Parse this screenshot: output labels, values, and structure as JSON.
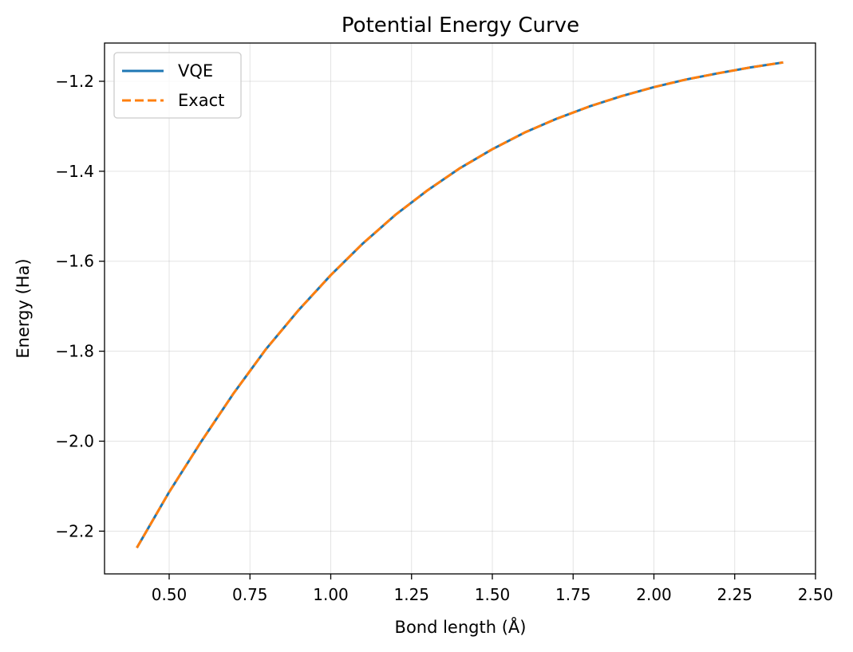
{
  "chart_data": {
    "type": "line",
    "title": "Potential Energy Curve",
    "xlabel": "Bond length (Å)",
    "ylabel": "Energy (Ha)",
    "xlim": [
      0.3,
      2.5
    ],
    "ylim": [
      -2.295,
      -1.115
    ],
    "xticks": [
      0.5,
      0.75,
      1.0,
      1.25,
      1.5,
      1.75,
      2.0,
      2.25,
      2.5
    ],
    "xtick_labels": [
      "0.50",
      "0.75",
      "1.00",
      "1.25",
      "1.50",
      "1.75",
      "2.00",
      "2.25",
      "2.50"
    ],
    "yticks": [
      -2.2,
      -2.0,
      -1.8,
      -1.6,
      -1.4,
      -1.2
    ],
    "ytick_labels": [
      "−2.2",
      "−2.0",
      "−1.8",
      "−1.6",
      "−1.4",
      "−1.2"
    ],
    "grid": true,
    "legend_position": "top-left",
    "x": [
      0.4,
      0.5,
      0.6,
      0.7,
      0.8,
      0.9,
      1.0,
      1.1,
      1.2,
      1.3,
      1.4,
      1.5,
      1.6,
      1.7,
      1.8,
      1.9,
      2.0,
      2.1,
      2.2,
      2.3,
      2.4
    ],
    "series": [
      {
        "name": "VQE",
        "color": "#1f77b4",
        "style": "solid",
        "values": [
          -2.237,
          -2.113,
          -2.0,
          -1.893,
          -1.795,
          -1.709,
          -1.631,
          -1.56,
          -1.497,
          -1.442,
          -1.393,
          -1.351,
          -1.314,
          -1.283,
          -1.256,
          -1.233,
          -1.213,
          -1.196,
          -1.182,
          -1.169,
          -1.158
        ]
      },
      {
        "name": "Exact",
        "color": "#ff7f0e",
        "style": "dashed",
        "values": [
          -2.237,
          -2.113,
          -2.0,
          -1.893,
          -1.795,
          -1.709,
          -1.631,
          -1.56,
          -1.497,
          -1.442,
          -1.393,
          -1.351,
          -1.314,
          -1.283,
          -1.256,
          -1.233,
          -1.213,
          -1.196,
          -1.182,
          -1.169,
          -1.158
        ]
      }
    ]
  }
}
